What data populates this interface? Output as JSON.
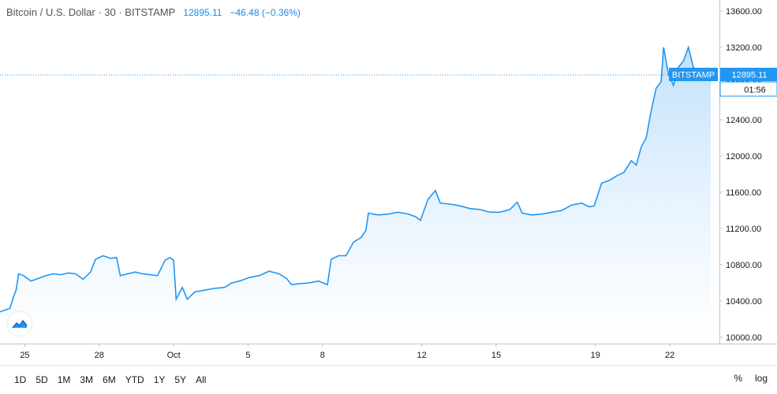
{
  "header": {
    "symbol": "Bitcoin / U.S. Dollar · 30 · BITSTAMP",
    "price": "12895.11",
    "change": "−46.48 (−0.36%)"
  },
  "price_tag": {
    "exchange": "BITSTAMP",
    "price": "12895.11",
    "countdown": "01:56"
  },
  "toolbar": {
    "ranges": [
      "1D",
      "5D",
      "1M",
      "3M",
      "6M",
      "YTD",
      "1Y",
      "5Y",
      "All"
    ],
    "percent_label": "%",
    "log_label": "log"
  },
  "colors": {
    "line": "#2196f3",
    "fill_top": "#bbdefb",
    "fill_bottom": "#ffffff",
    "price_tag_bg": "#2196f3",
    "grid": "#e0e3eb"
  },
  "chart_data": {
    "type": "area",
    "y_ticks": [
      "13600.00",
      "13200.00",
      "12800.00",
      "12400.00",
      "12000.00",
      "11600.00",
      "11200.00",
      "10800.00",
      "10400.00",
      "10000.00"
    ],
    "x_ticks": [
      "25",
      "28",
      "Oct",
      "5",
      "8",
      "12",
      "15",
      "19",
      "22"
    ],
    "ylim": [
      10000,
      13600
    ],
    "x_tick_positions": [
      0.25,
      3.25,
      6.25,
      9.25,
      12.25,
      16.25,
      19.25,
      23.25,
      26.25
    ],
    "xlim": [
      -0.75,
      28.25
    ],
    "points": [
      [
        -0.75,
        10280
      ],
      [
        -0.55,
        10300
      ],
      [
        -0.35,
        10320
      ],
      [
        -0.2,
        10450
      ],
      [
        -0.1,
        10520
      ],
      [
        0.0,
        10700
      ],
      [
        0.2,
        10680
      ],
      [
        0.5,
        10620
      ],
      [
        0.8,
        10650
      ],
      [
        1.1,
        10680
      ],
      [
        1.4,
        10700
      ],
      [
        1.7,
        10690
      ],
      [
        2.0,
        10710
      ],
      [
        2.3,
        10700
      ],
      [
        2.6,
        10640
      ],
      [
        2.9,
        10720
      ],
      [
        3.1,
        10860
      ],
      [
        3.4,
        10900
      ],
      [
        3.7,
        10870
      ],
      [
        3.95,
        10880
      ],
      [
        4.1,
        10680
      ],
      [
        4.4,
        10700
      ],
      [
        4.7,
        10720
      ],
      [
        5.0,
        10700
      ],
      [
        5.3,
        10690
      ],
      [
        5.6,
        10680
      ],
      [
        5.9,
        10850
      ],
      [
        6.1,
        10880
      ],
      [
        6.25,
        10850
      ],
      [
        6.35,
        10420
      ],
      [
        6.6,
        10550
      ],
      [
        6.8,
        10420
      ],
      [
        7.1,
        10500
      ],
      [
        7.5,
        10520
      ],
      [
        7.9,
        10540
      ],
      [
        8.3,
        10550
      ],
      [
        8.6,
        10600
      ],
      [
        8.9,
        10620
      ],
      [
        9.3,
        10660
      ],
      [
        9.7,
        10680
      ],
      [
        10.1,
        10730
      ],
      [
        10.5,
        10700
      ],
      [
        10.8,
        10650
      ],
      [
        11.0,
        10580
      ],
      [
        11.3,
        10590
      ],
      [
        11.7,
        10600
      ],
      [
        12.1,
        10620
      ],
      [
        12.45,
        10580
      ],
      [
        12.6,
        10860
      ],
      [
        12.9,
        10900
      ],
      [
        13.2,
        10900
      ],
      [
        13.5,
        11050
      ],
      [
        13.8,
        11100
      ],
      [
        14.0,
        11180
      ],
      [
        14.1,
        11370
      ],
      [
        14.5,
        11350
      ],
      [
        14.9,
        11360
      ],
      [
        15.3,
        11380
      ],
      [
        15.7,
        11360
      ],
      [
        16.0,
        11330
      ],
      [
        16.2,
        11290
      ],
      [
        16.5,
        11520
      ],
      [
        16.8,
        11620
      ],
      [
        17.0,
        11480
      ],
      [
        17.4,
        11470
      ],
      [
        17.8,
        11450
      ],
      [
        18.2,
        11420
      ],
      [
        18.6,
        11410
      ],
      [
        19.0,
        11380
      ],
      [
        19.4,
        11380
      ],
      [
        19.8,
        11410
      ],
      [
        20.1,
        11490
      ],
      [
        20.3,
        11370
      ],
      [
        20.7,
        11350
      ],
      [
        21.1,
        11360
      ],
      [
        21.5,
        11380
      ],
      [
        21.9,
        11400
      ],
      [
        22.3,
        11460
      ],
      [
        22.7,
        11480
      ],
      [
        23.0,
        11440
      ],
      [
        23.2,
        11450
      ],
      [
        23.5,
        11700
      ],
      [
        23.8,
        11730
      ],
      [
        24.1,
        11780
      ],
      [
        24.4,
        11820
      ],
      [
        24.7,
        11950
      ],
      [
        24.9,
        11900
      ],
      [
        25.1,
        12100
      ],
      [
        25.3,
        12200
      ],
      [
        25.5,
        12500
      ],
      [
        25.7,
        12750
      ],
      [
        25.9,
        12820
      ],
      [
        26.0,
        13200
      ],
      [
        26.2,
        12900
      ],
      [
        26.4,
        12780
      ],
      [
        26.6,
        12980
      ],
      [
        26.8,
        13050
      ],
      [
        27.0,
        13200
      ],
      [
        27.2,
        12980
      ],
      [
        27.4,
        12920
      ],
      [
        27.6,
        12960
      ],
      [
        27.8,
        12880
      ],
      [
        27.9,
        12895
      ]
    ]
  }
}
